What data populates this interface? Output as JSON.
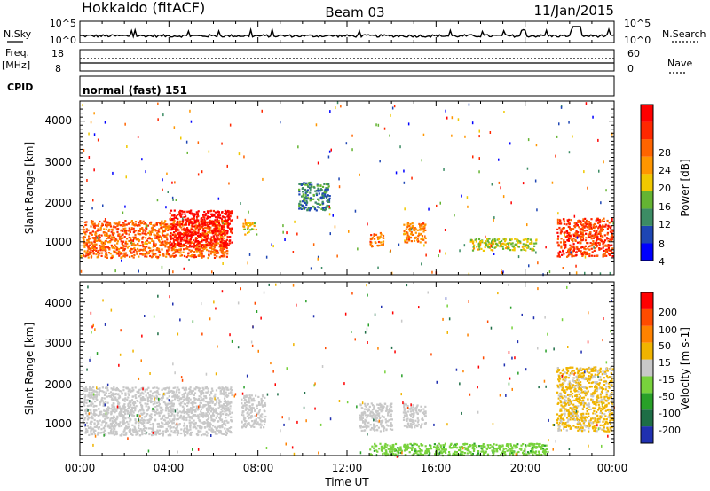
{
  "header": {
    "station": "Hokkaido (fitACF)",
    "beam": "Beam 03",
    "date": "11/Jan/2015"
  },
  "noise_panel": {
    "left_label": "N.Sky",
    "right_label": "N.Search",
    "left_ticks": [
      "10^5",
      "10^0"
    ],
    "right_ticks": [
      "10^5",
      "10^0"
    ]
  },
  "freq_panel": {
    "left_label_1": "Freq.",
    "left_label_2": "[MHz]",
    "right_label": "Nave",
    "left_ticks": [
      "18",
      "8"
    ],
    "right_ticks": [
      "60",
      "0"
    ]
  },
  "cpid_panel": {
    "label": "CPID",
    "text": "normal (fast) 151"
  },
  "x_axis": {
    "ticks": [
      "00:00",
      "04:00",
      "08:00",
      "12:00",
      "16:00",
      "20:00",
      "00:00"
    ],
    "label": "Time UT"
  },
  "power_panel": {
    "ylabel": "Slant Range [km]",
    "yticks": [
      "4000",
      "3000",
      "2000",
      "1000"
    ],
    "colorbar_label": "Power [dB]",
    "colorbar_ticks": [
      "28",
      "24",
      "20",
      "16",
      "12",
      "8",
      "4"
    ]
  },
  "velocity_panel": {
    "ylabel": "Slant Range [km]",
    "yticks": [
      "4000",
      "3000",
      "2000",
      "1000"
    ],
    "colorbar_label": "Velocity [m s-1]",
    "colorbar_ticks": [
      "200",
      "100",
      "50",
      "15",
      "-15",
      "-50",
      "-100",
      "-200"
    ]
  },
  "colors": {
    "power_scale": [
      "#0000ff",
      "#1e46b4",
      "#3c8c64",
      "#64b432",
      "#f0c800",
      "#ff9600",
      "#ff6400",
      "#ff2800",
      "#ff0000"
    ],
    "velocity_scale": [
      "#2030b0",
      "#1e6e46",
      "#28a028",
      "#78d23c",
      "#c8c8c8",
      "#f0b400",
      "#ff8200",
      "#ff4b00",
      "#ff0000"
    ]
  },
  "chart_data": [
    {
      "type": "heatmap",
      "title": "Power",
      "xlabel": "Time UT",
      "ylabel": "Slant Range [km]",
      "xlim": [
        0,
        24
      ],
      "ylim": [
        180,
        4500
      ],
      "zlabel": "Power [dB]",
      "zlim": [
        0,
        30
      ],
      "regions": [
        {
          "t0": 0.1,
          "t1": 6.6,
          "r0": 620,
          "r1": 1550,
          "value": 22
        },
        {
          "t0": 4.0,
          "t1": 6.8,
          "r0": 900,
          "r1": 1800,
          "value": 28
        },
        {
          "t0": 7.3,
          "t1": 7.9,
          "r0": 1200,
          "r1": 1500,
          "value": 16
        },
        {
          "t0": 9.8,
          "t1": 11.2,
          "r0": 1800,
          "r1": 2500,
          "value": 8
        },
        {
          "t0": 13.0,
          "t1": 13.6,
          "r0": 900,
          "r1": 1250,
          "value": 20
        },
        {
          "t0": 14.5,
          "t1": 15.5,
          "r0": 1000,
          "r1": 1500,
          "value": 20
        },
        {
          "t0": 17.5,
          "t1": 20.5,
          "r0": 800,
          "r1": 1100,
          "value": 14
        },
        {
          "t0": 21.4,
          "t1": 23.9,
          "r0": 650,
          "r1": 1600,
          "value": 24
        }
      ]
    },
    {
      "type": "heatmap",
      "title": "Velocity",
      "xlabel": "Time UT",
      "ylabel": "Slant Range [km]",
      "xlim": [
        0,
        24
      ],
      "ylim": [
        180,
        4500
      ],
      "zlabel": "Velocity [m s-1]",
      "zlim": [
        -200,
        200
      ],
      "regions": [
        {
          "t0": 0.1,
          "t1": 6.8,
          "r0": 700,
          "r1": 1900,
          "value": 0
        },
        {
          "t0": 7.2,
          "t1": 8.3,
          "r0": 900,
          "r1": 1700,
          "value": 0
        },
        {
          "t0": 12.5,
          "t1": 14.0,
          "r0": 800,
          "r1": 1500,
          "value": 0
        },
        {
          "t0": 14.5,
          "t1": 15.5,
          "r0": 900,
          "r1": 1500,
          "value": 0
        },
        {
          "t0": 13.0,
          "t1": 21.0,
          "r0": 200,
          "r1": 500,
          "value": -50
        },
        {
          "t0": 21.4,
          "t1": 23.9,
          "r0": 800,
          "r1": 2400,
          "value": 30
        }
      ]
    }
  ]
}
